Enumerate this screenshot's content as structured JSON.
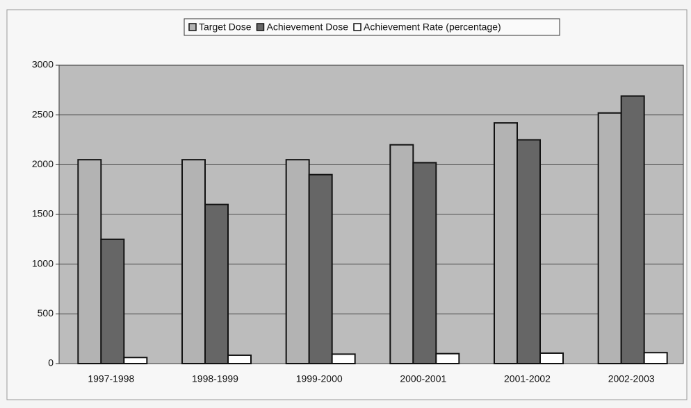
{
  "chart_data": {
    "type": "bar",
    "categories": [
      "1997-1998",
      "1998-1999",
      "1999-2000",
      "2000-2001",
      "2001-2002",
      "2002-2003"
    ],
    "series": [
      {
        "name": "Target Dose",
        "color": "#b3b3b3",
        "values": [
          2050,
          2050,
          2050,
          2200,
          2420,
          2520
        ]
      },
      {
        "name": "Achievement Dose",
        "color": "#666666",
        "values": [
          1250,
          1600,
          1900,
          2020,
          2250,
          2690
        ]
      },
      {
        "name": "Achievement Rate (percentage)",
        "color": "#ffffff",
        "values": [
          61,
          84,
          95,
          100,
          105,
          110
        ]
      }
    ],
    "ylim": [
      0,
      3000
    ],
    "yticks": [
      0,
      500,
      1000,
      1500,
      2000,
      2500,
      3000
    ],
    "grid": true,
    "legend": "top"
  }
}
